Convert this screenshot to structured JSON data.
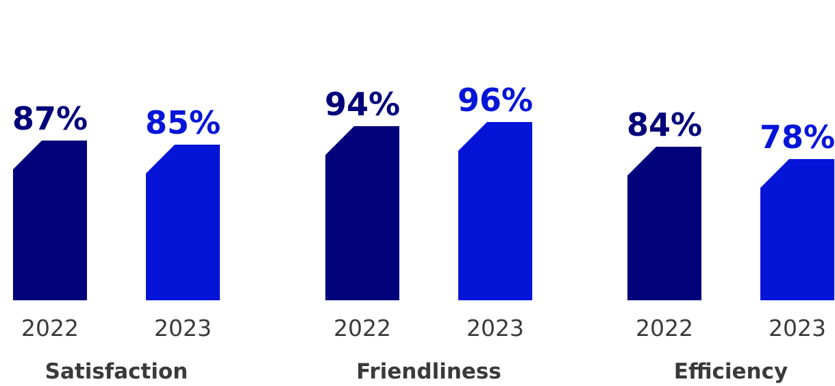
{
  "chart_data": {
    "type": "bar",
    "value_suffix": "%",
    "groups": [
      {
        "name": "Satisfaction",
        "bars": [
          {
            "year": "2022",
            "value": 87,
            "value_label": "87%"
          },
          {
            "year": "2023",
            "value": 85,
            "value_label": "85%"
          }
        ]
      },
      {
        "name": "Friendliness",
        "bars": [
          {
            "year": "2022",
            "value": 94,
            "value_label": "94%"
          },
          {
            "year": "2023",
            "value": 96,
            "value_label": "96%"
          }
        ]
      },
      {
        "name": "Efficiency",
        "bars": [
          {
            "year": "2022",
            "value": 84,
            "value_label": "84%"
          },
          {
            "year": "2023",
            "value": 78,
            "value_label": "78%"
          }
        ]
      }
    ],
    "colors": {
      "2022": "#02037a",
      "2023": "#0515d8"
    },
    "grid": false,
    "legend": "none"
  }
}
